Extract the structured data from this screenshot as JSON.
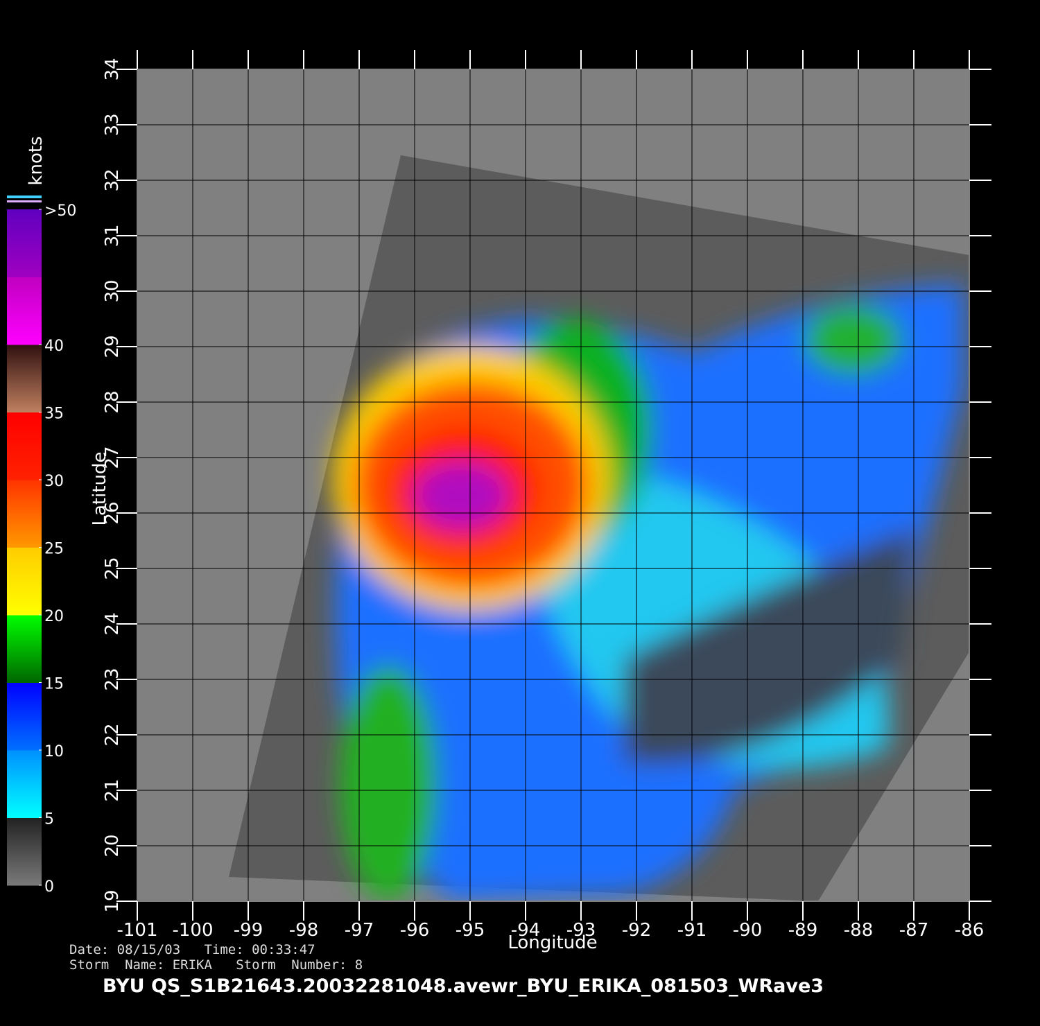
{
  "map": {
    "xlabel": "Longitude",
    "ylabel": "Latitude",
    "xlim": [
      -101,
      -86
    ],
    "ylim": [
      19,
      34
    ],
    "xticks": [
      -101,
      -100,
      -99,
      -98,
      -97,
      -96,
      -95,
      -94,
      -93,
      -92,
      -91,
      -90,
      -89,
      -88,
      -87,
      -86
    ],
    "yticks": [
      19,
      20,
      21,
      22,
      23,
      24,
      25,
      26,
      27,
      28,
      29,
      30,
      31,
      32,
      33,
      34
    ],
    "grid": true
  },
  "colorbar": {
    "title": "knots",
    "range": [
      0,
      50
    ],
    "ticks": [
      0,
      5,
      10,
      15,
      20,
      25,
      30,
      35,
      40,
      {
        "value": 50,
        "label": ">50"
      }
    ],
    "colors": [
      [
        "#7a7a7a",
        "#222222"
      ],
      [
        "#00ffff",
        "#0090ff"
      ],
      [
        "#0070ff",
        "#0000ff"
      ],
      [
        "#006600",
        "#00ff00"
      ],
      [
        "#ffff00",
        "#ffcc00"
      ],
      [
        "#ff9900",
        "#ff3300"
      ],
      [
        "#ff2200",
        "#ff0000"
      ],
      [
        "#c08060",
        "#301010"
      ],
      [
        "#ff00ff",
        "#c000c0"
      ],
      [
        "#a000c0",
        "#6000c0"
      ]
    ]
  },
  "footer": {
    "date_line": "Date: 08/15/03   Time: 00:33:47",
    "storm_line": "Storm  Name: ERIKA   Storm  Number: 8",
    "title": "BYU  QS_S1B21643.20032281048.avewr_BYU_ERIKA_081503_WRave3"
  }
}
